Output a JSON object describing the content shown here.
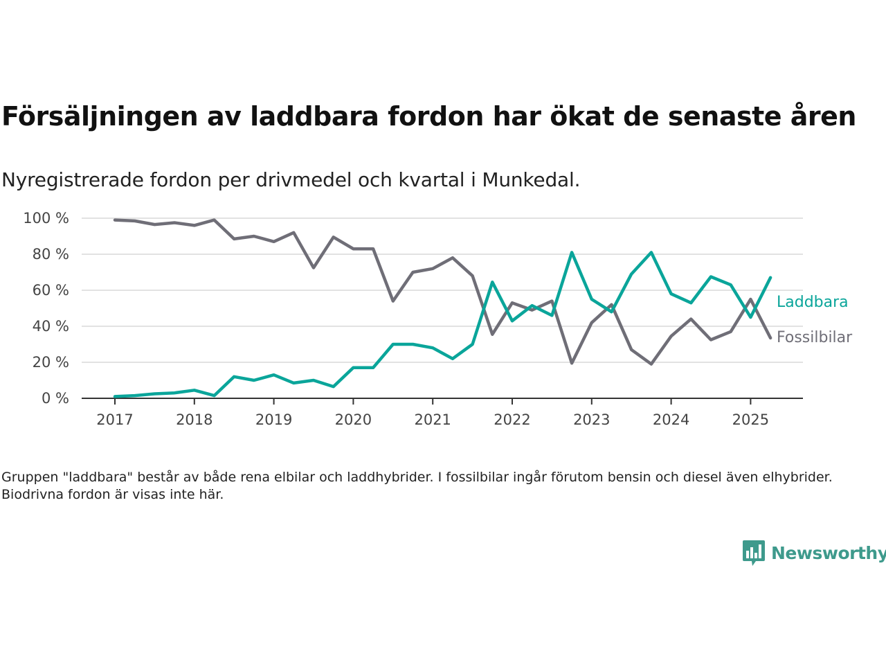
{
  "title": "Försäljningen av laddbara fordon har ökat de senaste åren",
  "subtitle": "Nyregistrerade fordon per drivmedel och kvartal i Munkedal.",
  "footnote": "Gruppen \"laddbara\" består av både rena elbilar och laddhybrider. I fossilbilar ingår förutom bensin och diesel även elhybrider. Biodrivna fordon är visas inte här.",
  "brand": {
    "name": "Newsworthy",
    "icon": "newsworthy-logo-icon",
    "color": "#3e9a8c"
  },
  "chart_data": {
    "type": "line",
    "x": [
      "2017-Q1",
      "2017-Q2",
      "2017-Q3",
      "2017-Q4",
      "2018-Q1",
      "2018-Q2",
      "2018-Q3",
      "2018-Q4",
      "2019-Q1",
      "2019-Q2",
      "2019-Q3",
      "2019-Q4",
      "2020-Q1",
      "2020-Q2",
      "2020-Q3",
      "2020-Q4",
      "2021-Q1",
      "2021-Q2",
      "2021-Q3",
      "2021-Q4",
      "2022-Q1",
      "2022-Q2",
      "2022-Q3",
      "2022-Q4",
      "2023-Q1",
      "2023-Q2",
      "2023-Q3",
      "2023-Q4",
      "2024-Q1",
      "2024-Q2",
      "2024-Q3",
      "2024-Q4",
      "2025-Q1",
      "2025-Q2"
    ],
    "series": [
      {
        "name": "Laddbara",
        "color": "#0aa59a",
        "values": [
          1,
          1.5,
          2.5,
          3,
          4.5,
          1.5,
          12,
          10,
          13,
          8.5,
          10,
          6.5,
          17,
          17,
          30,
          30,
          28,
          22,
          30,
          64.5,
          43,
          51.5,
          46,
          81,
          55,
          48,
          69,
          81,
          58,
          53,
          67.5,
          63,
          45,
          67
        ]
      },
      {
        "name": "Fossilbilar",
        "color": "#6f6e77",
        "values": [
          99,
          98.5,
          96.5,
          97.5,
          96,
          99,
          88.5,
          90,
          87,
          92,
          72.5,
          89.5,
          83,
          83,
          54,
          70,
          72,
          78,
          68,
          35.5,
          53,
          49,
          54,
          19.5,
          42,
          52,
          27,
          19,
          34.5,
          44,
          32.5,
          37,
          55,
          33.5
        ]
      }
    ],
    "xticks": [
      "2017",
      "2018",
      "2019",
      "2020",
      "2021",
      "2022",
      "2023",
      "2024",
      "2025"
    ],
    "yticks": [
      "0 %",
      "20 %",
      "40 %",
      "60 %",
      "80 %",
      "100 %"
    ],
    "ylim": [
      0,
      100
    ],
    "grid": true,
    "legend": "inline-right"
  }
}
